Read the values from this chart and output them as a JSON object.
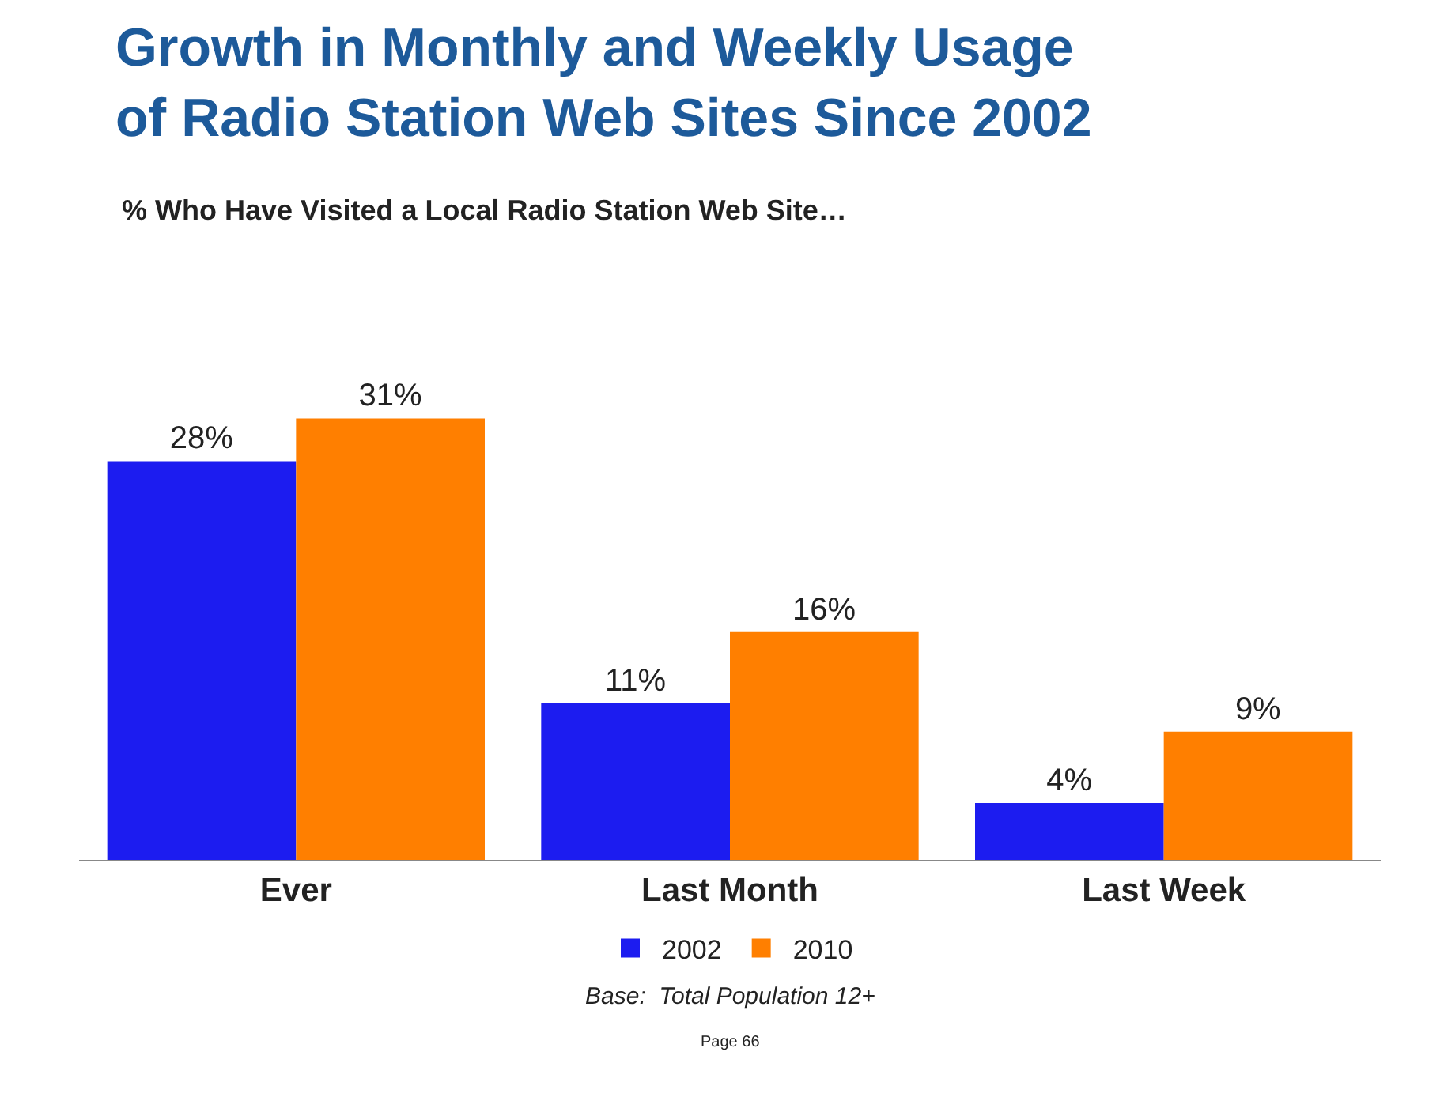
{
  "chart_data": {
    "type": "bar",
    "title": "Growth in Monthly and Weekly Usage\nof Radio Station Web Sites Since 2002",
    "subtitle": "% Who Have Visited a Local Radio Station Web Site…",
    "categories": [
      "Ever",
      "Last Month",
      "Last Week"
    ],
    "series": [
      {
        "name": "2002",
        "color": "#1c1cf0",
        "values": [
          28,
          11,
          4
        ],
        "value_labels": [
          "28%",
          "11%",
          "4%"
        ]
      },
      {
        "name": "2010",
        "color": "#ff7f00",
        "values": [
          31,
          16,
          9
        ],
        "value_labels": [
          "31%",
          "16%",
          "9%"
        ]
      }
    ],
    "annotations": [
      "Base:  Total Population 12+",
      "Page 66"
    ],
    "legend": "bottom"
  }
}
